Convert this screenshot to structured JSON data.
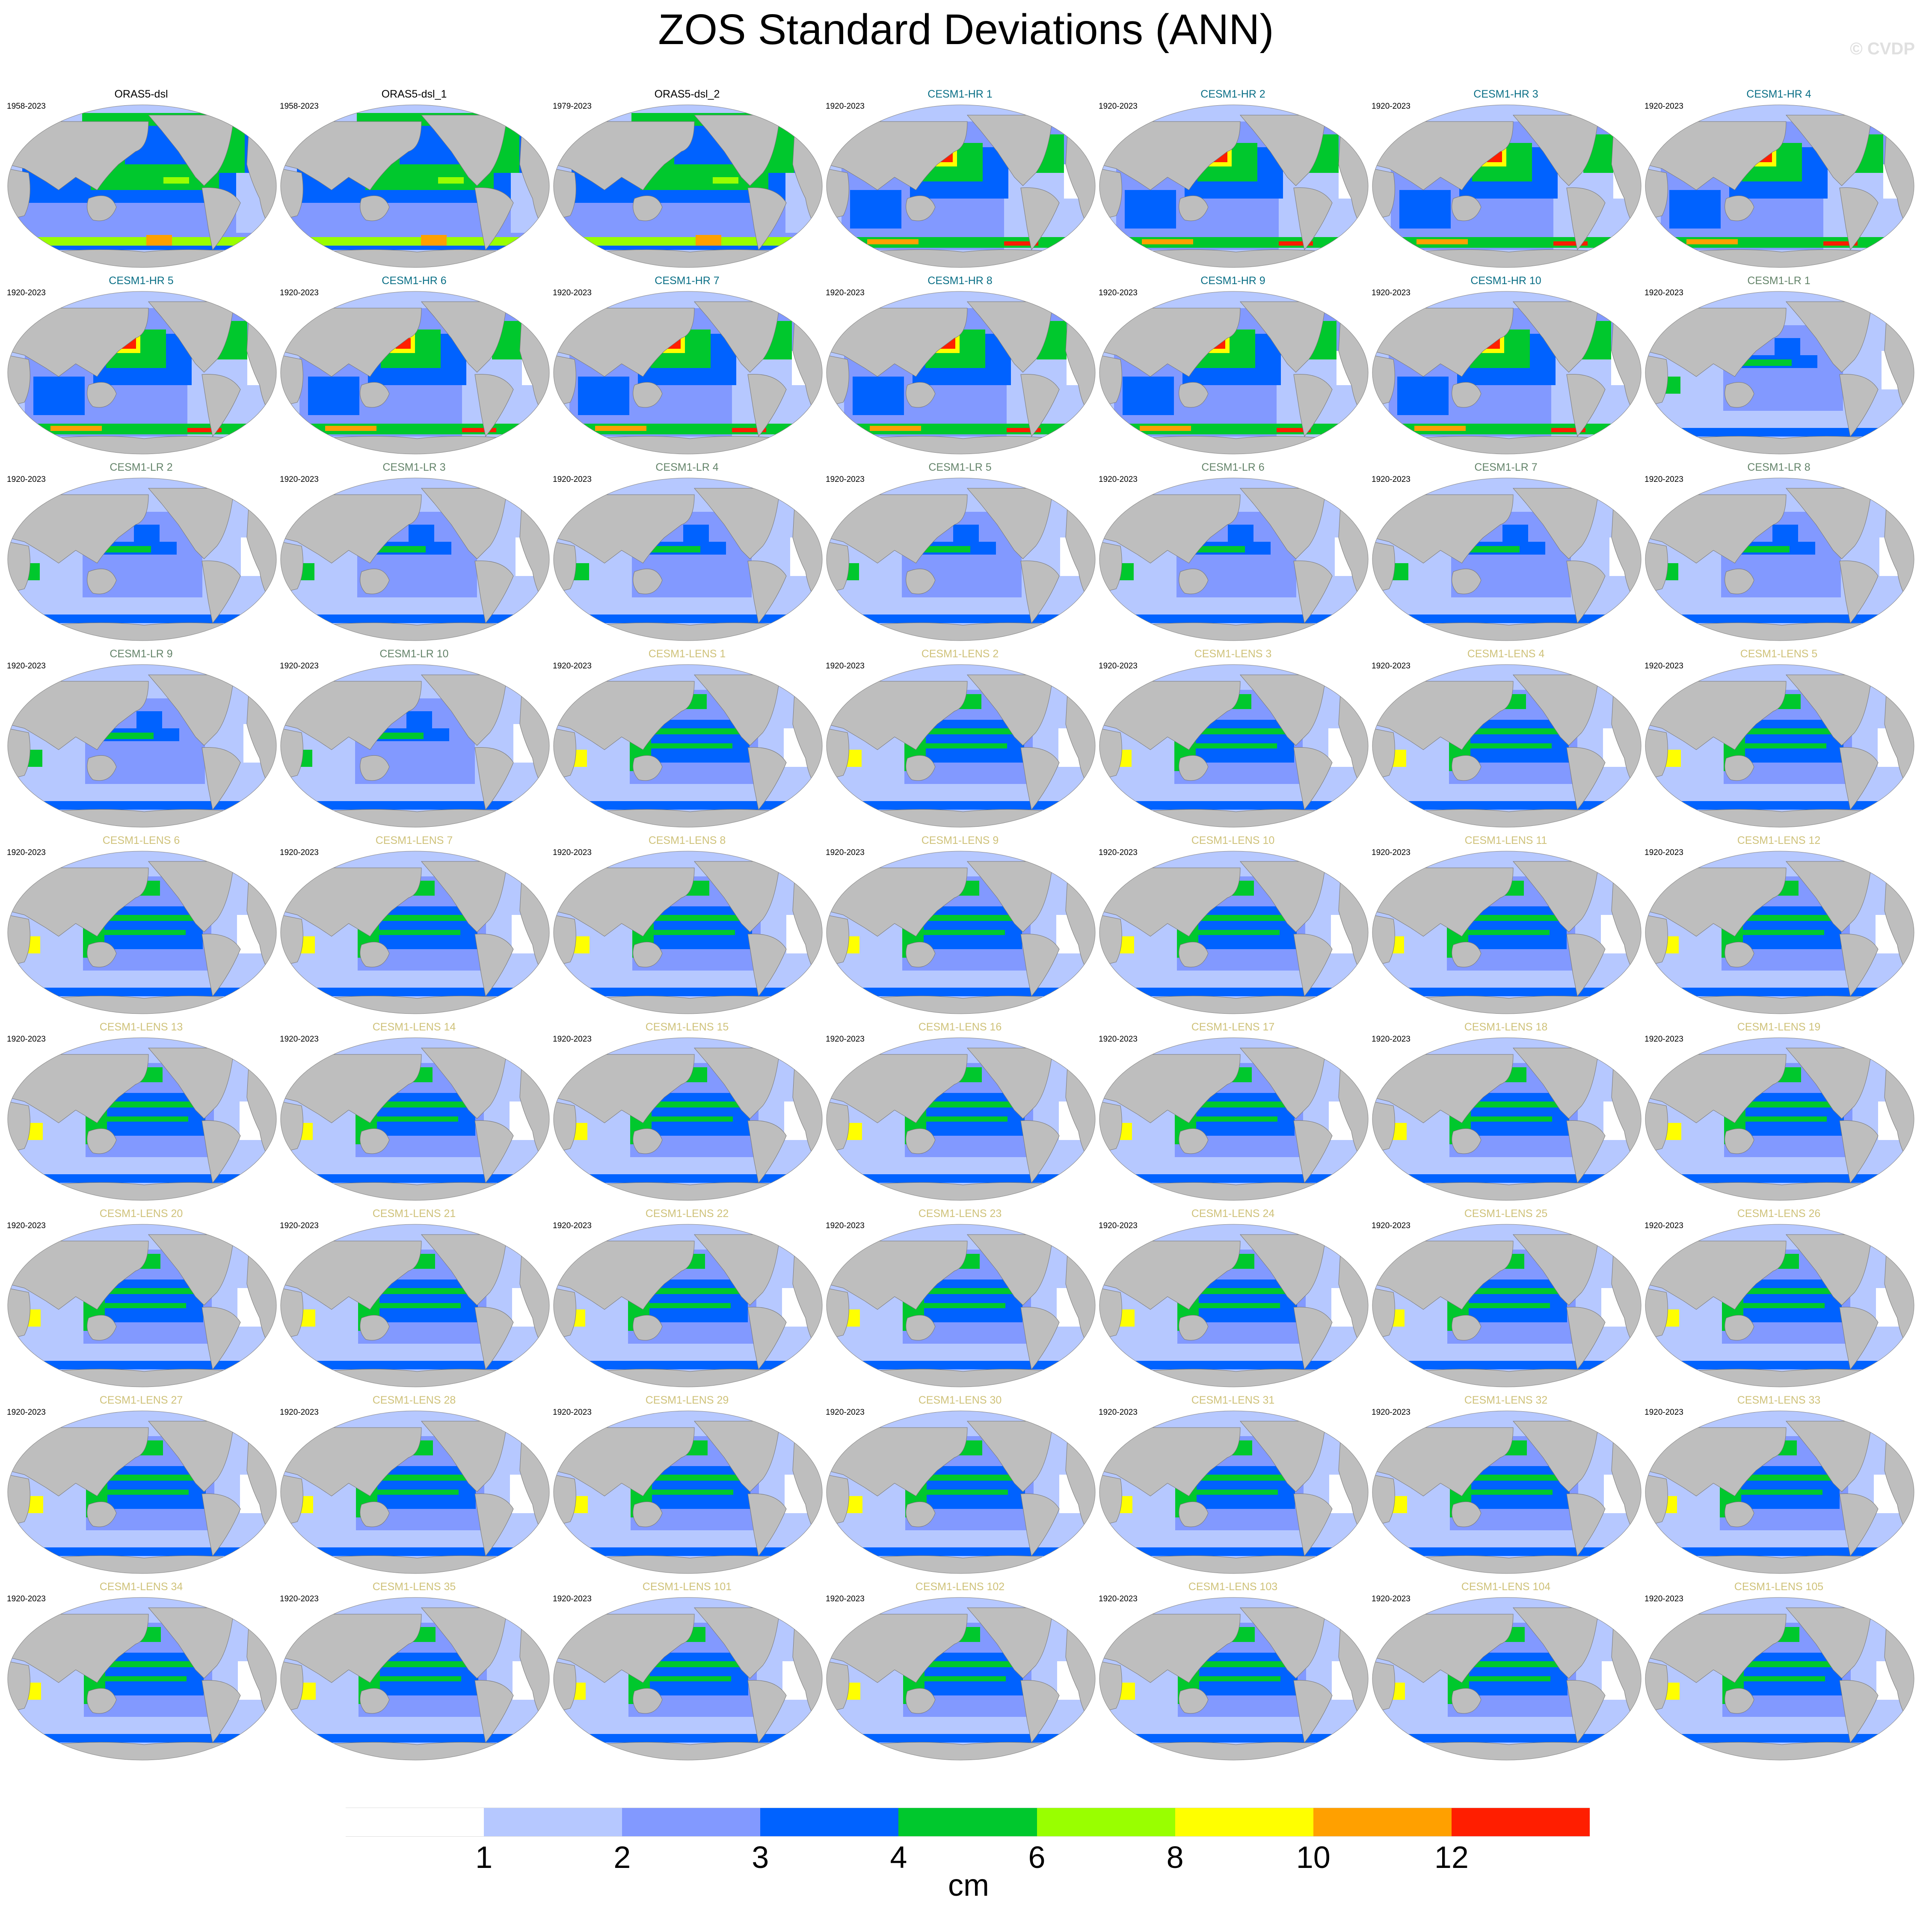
{
  "title": "ZOS Standard Deviations (ANN)",
  "watermark": "© CVDP",
  "group_colors": {
    "obs": "#000000",
    "hr": "#0a6f86",
    "lr": "#64846a",
    "lens": "#cfc27a"
  },
  "panels": [
    {
      "title": "ORAS5-dsl",
      "period": "1958-2023",
      "group": "obs"
    },
    {
      "title": "ORAS5-dsl_1",
      "period": "1958-2023",
      "group": "obs"
    },
    {
      "title": "ORAS5-dsl_2",
      "period": "1979-2023",
      "group": "obs"
    },
    {
      "title": "CESM1-HR 1",
      "period": "1920-2023",
      "group": "hr"
    },
    {
      "title": "CESM1-HR 2",
      "period": "1920-2023",
      "group": "hr"
    },
    {
      "title": "CESM1-HR 3",
      "period": "1920-2023",
      "group": "hr"
    },
    {
      "title": "CESM1-HR 4",
      "period": "1920-2023",
      "group": "hr"
    },
    {
      "title": "CESM1-HR 5",
      "period": "1920-2023",
      "group": "hr"
    },
    {
      "title": "CESM1-HR 6",
      "period": "1920-2023",
      "group": "hr"
    },
    {
      "title": "CESM1-HR 7",
      "period": "1920-2023",
      "group": "hr"
    },
    {
      "title": "CESM1-HR 8",
      "period": "1920-2023",
      "group": "hr"
    },
    {
      "title": "CESM1-HR 9",
      "period": "1920-2023",
      "group": "hr"
    },
    {
      "title": "CESM1-HR 10",
      "period": "1920-2023",
      "group": "hr"
    },
    {
      "title": "CESM1-LR 1",
      "period": "1920-2023",
      "group": "lr"
    },
    {
      "title": "CESM1-LR 2",
      "period": "1920-2023",
      "group": "lr"
    },
    {
      "title": "CESM1-LR 3",
      "period": "1920-2023",
      "group": "lr"
    },
    {
      "title": "CESM1-LR 4",
      "period": "1920-2023",
      "group": "lr"
    },
    {
      "title": "CESM1-LR 5",
      "period": "1920-2023",
      "group": "lr"
    },
    {
      "title": "CESM1-LR 6",
      "period": "1920-2023",
      "group": "lr"
    },
    {
      "title": "CESM1-LR 7",
      "period": "1920-2023",
      "group": "lr"
    },
    {
      "title": "CESM1-LR 8",
      "period": "1920-2023",
      "group": "lr"
    },
    {
      "title": "CESM1-LR 9",
      "period": "1920-2023",
      "group": "lr"
    },
    {
      "title": "CESM1-LR 10",
      "period": "1920-2023",
      "group": "lr"
    },
    {
      "title": "CESM1-LENS 1",
      "period": "1920-2023",
      "group": "lens"
    },
    {
      "title": "CESM1-LENS 2",
      "period": "1920-2023",
      "group": "lens"
    },
    {
      "title": "CESM1-LENS 3",
      "period": "1920-2023",
      "group": "lens"
    },
    {
      "title": "CESM1-LENS 4",
      "period": "1920-2023",
      "group": "lens"
    },
    {
      "title": "CESM1-LENS 5",
      "period": "1920-2023",
      "group": "lens"
    },
    {
      "title": "CESM1-LENS 6",
      "period": "1920-2023",
      "group": "lens"
    },
    {
      "title": "CESM1-LENS 7",
      "period": "1920-2023",
      "group": "lens"
    },
    {
      "title": "CESM1-LENS 8",
      "period": "1920-2023",
      "group": "lens"
    },
    {
      "title": "CESM1-LENS 9",
      "period": "1920-2023",
      "group": "lens"
    },
    {
      "title": "CESM1-LENS 10",
      "period": "1920-2023",
      "group": "lens"
    },
    {
      "title": "CESM1-LENS 11",
      "period": "1920-2023",
      "group": "lens"
    },
    {
      "title": "CESM1-LENS 12",
      "period": "1920-2023",
      "group": "lens"
    },
    {
      "title": "CESM1-LENS 13",
      "period": "1920-2023",
      "group": "lens"
    },
    {
      "title": "CESM1-LENS 14",
      "period": "1920-2023",
      "group": "lens"
    },
    {
      "title": "CESM1-LENS 15",
      "period": "1920-2023",
      "group": "lens"
    },
    {
      "title": "CESM1-LENS 16",
      "period": "1920-2023",
      "group": "lens"
    },
    {
      "title": "CESM1-LENS 17",
      "period": "1920-2023",
      "group": "lens"
    },
    {
      "title": "CESM1-LENS 18",
      "period": "1920-2023",
      "group": "lens"
    },
    {
      "title": "CESM1-LENS 19",
      "period": "1920-2023",
      "group": "lens"
    },
    {
      "title": "CESM1-LENS 20",
      "period": "1920-2023",
      "group": "lens"
    },
    {
      "title": "CESM1-LENS 21",
      "period": "1920-2023",
      "group": "lens"
    },
    {
      "title": "CESM1-LENS 22",
      "period": "1920-2023",
      "group": "lens"
    },
    {
      "title": "CESM1-LENS 23",
      "period": "1920-2023",
      "group": "lens"
    },
    {
      "title": "CESM1-LENS 24",
      "period": "1920-2023",
      "group": "lens"
    },
    {
      "title": "CESM1-LENS 25",
      "period": "1920-2023",
      "group": "lens"
    },
    {
      "title": "CESM1-LENS 26",
      "period": "1920-2023",
      "group": "lens"
    },
    {
      "title": "CESM1-LENS 27",
      "period": "1920-2023",
      "group": "lens"
    },
    {
      "title": "CESM1-LENS 28",
      "period": "1920-2023",
      "group": "lens"
    },
    {
      "title": "CESM1-LENS 29",
      "period": "1920-2023",
      "group": "lens"
    },
    {
      "title": "CESM1-LENS 30",
      "period": "1920-2023",
      "group": "lens"
    },
    {
      "title": "CESM1-LENS 31",
      "period": "1920-2023",
      "group": "lens"
    },
    {
      "title": "CESM1-LENS 32",
      "period": "1920-2023",
      "group": "lens"
    },
    {
      "title": "CESM1-LENS 33",
      "period": "1920-2023",
      "group": "lens"
    },
    {
      "title": "CESM1-LENS 34",
      "period": "1920-2023",
      "group": "lens"
    },
    {
      "title": "CESM1-LENS 35",
      "period": "1920-2023",
      "group": "lens"
    },
    {
      "title": "CESM1-LENS 101",
      "period": "1920-2023",
      "group": "lens"
    },
    {
      "title": "CESM1-LENS 102",
      "period": "1920-2023",
      "group": "lens"
    },
    {
      "title": "CESM1-LENS 103",
      "period": "1920-2023",
      "group": "lens"
    },
    {
      "title": "CESM1-LENS 104",
      "period": "1920-2023",
      "group": "lens"
    },
    {
      "title": "CESM1-LENS 105",
      "period": "1920-2023",
      "group": "lens"
    }
  ],
  "chart_data": {
    "type": "heatmap",
    "title": "ZOS Standard Deviations (ANN)",
    "projection": "robinson, pacific-centered",
    "land_color": "#bebebe",
    "layout": "7 columns x 9 rows of maps",
    "colorbar": {
      "label": "cm",
      "ticks": [
        "1",
        "2",
        "3",
        "4",
        "6",
        "8",
        "10",
        "12"
      ],
      "colors": [
        "#ffffff",
        "#b6c8ff",
        "#8299ff",
        "#0062ff",
        "#00c82d",
        "#99ff00",
        "#ffff00",
        "#ffa000",
        "#ff1e00"
      ],
      "placement": "bottom"
    }
  }
}
